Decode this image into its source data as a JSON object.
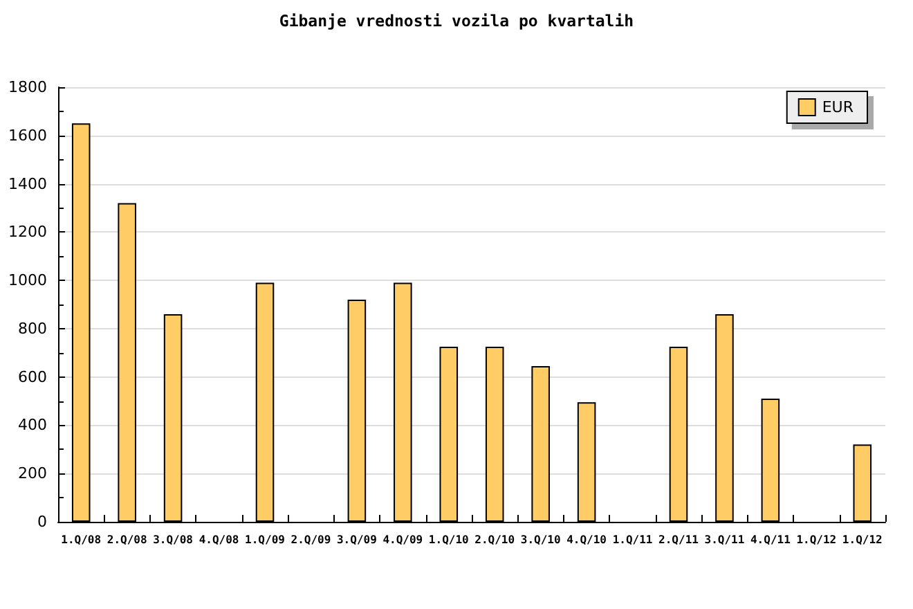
{
  "chart_data": {
    "type": "bar",
    "title": "Gibanje vrednosti vozila po kvartalih",
    "categories": [
      "1.Q/08",
      "2.Q/08",
      "3.Q/08",
      "4.Q/08",
      "1.Q/09",
      "2.Q/09",
      "3.Q/09",
      "4.Q/09",
      "1.Q/10",
      "2.Q/10",
      "3.Q/10",
      "4.Q/10",
      "1.Q/11",
      "2.Q/11",
      "3.Q/11",
      "4.Q/11",
      "1.Q/12",
      "1.Q/12"
    ],
    "series": [
      {
        "name": "EUR",
        "color": "#ffcc66",
        "values": [
          1650,
          1320,
          860,
          null,
          990,
          null,
          920,
          990,
          725,
          725,
          645,
          495,
          null,
          725,
          860,
          510,
          null,
          320
        ]
      }
    ],
    "ylim": [
      0,
      1800
    ],
    "yticks": [
      0,
      200,
      400,
      600,
      800,
      1000,
      1200,
      1400,
      1600,
      1800
    ],
    "grid": "y",
    "legend": "top right"
  }
}
